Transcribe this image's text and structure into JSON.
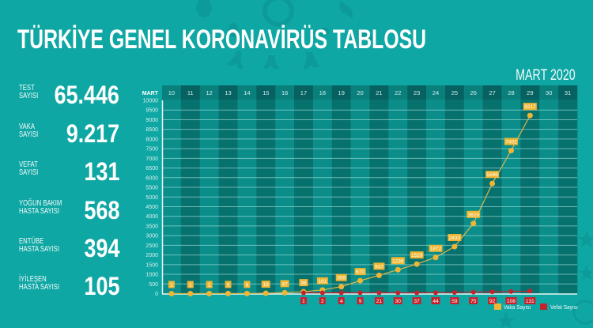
{
  "title": "TÜRKİYE GENEL KORONAVİRÜS TABLOSU",
  "period": "MART 2020",
  "stats": [
    {
      "label_line1": "TEST",
      "label_line2": "SAYISI",
      "value": "65.446"
    },
    {
      "label_line1": "VAKA",
      "label_line2": "SAYISI",
      "value": "9.217"
    },
    {
      "label_line1": "VEFAT",
      "label_line2": "SAYISI",
      "value": "131"
    },
    {
      "label_line1": "YOĞUN BAKIM",
      "label_line2": "HASTA SAYISI",
      "value": "568"
    },
    {
      "label_line1": "ENTÜBE",
      "label_line2": "HASTA SAYISI",
      "value": "394"
    },
    {
      "label_line1": "İYİLEŞEN",
      "label_line2": "HASTA SAYISI",
      "value": "105"
    }
  ],
  "colors": {
    "background": "#0fa7a4",
    "decoration": "#0b9693",
    "column_light": "#0b8d8a",
    "column_dark": "#07716e",
    "header_light": "#0a807d",
    "header_dark": "#066260",
    "grid": "rgba(190,240,236,0.55)",
    "axis": "#e8f8f7",
    "tick_text": "#d7f0ef",
    "vaka": "#efb633",
    "vaka_line": "#e2b648",
    "vefat": "#c4232d"
  },
  "chart_data": {
    "type": "line",
    "title": "",
    "xlabel": "MART",
    "ylabel": "",
    "categories": [
      "10",
      "11",
      "12",
      "13",
      "14",
      "15",
      "16",
      "17",
      "18",
      "19",
      "20",
      "21",
      "22",
      "23",
      "24",
      "25",
      "26",
      "27",
      "28",
      "29",
      "30",
      "31"
    ],
    "series": [
      {
        "name": "Vaka Sayısı",
        "color": "#efb633",
        "values": [
          1,
          1,
          1,
          5,
          6,
          18,
          47,
          98,
          191,
          359,
          670,
          947,
          1236,
          1529,
          1872,
          2433,
          3629,
          5698,
          7402,
          9217,
          null,
          null
        ]
      },
      {
        "name": "Vefat Sayısı",
        "color": "#c4232d",
        "values": [
          null,
          null,
          null,
          null,
          null,
          null,
          null,
          1,
          2,
          4,
          9,
          21,
          30,
          37,
          44,
          59,
          75,
          92,
          108,
          131,
          null,
          null
        ]
      }
    ],
    "ylim": [
      0,
      10000
    ],
    "ytick_step": 500,
    "yticks": [
      0,
      500,
      1000,
      1500,
      2000,
      2500,
      3000,
      3500,
      4000,
      4500,
      5000,
      5500,
      6000,
      6500,
      7000,
      7500,
      8000,
      8500,
      9000,
      9500,
      10000
    ],
    "grid": true,
    "data_labels": true,
    "legend_position": "bottom-right"
  }
}
